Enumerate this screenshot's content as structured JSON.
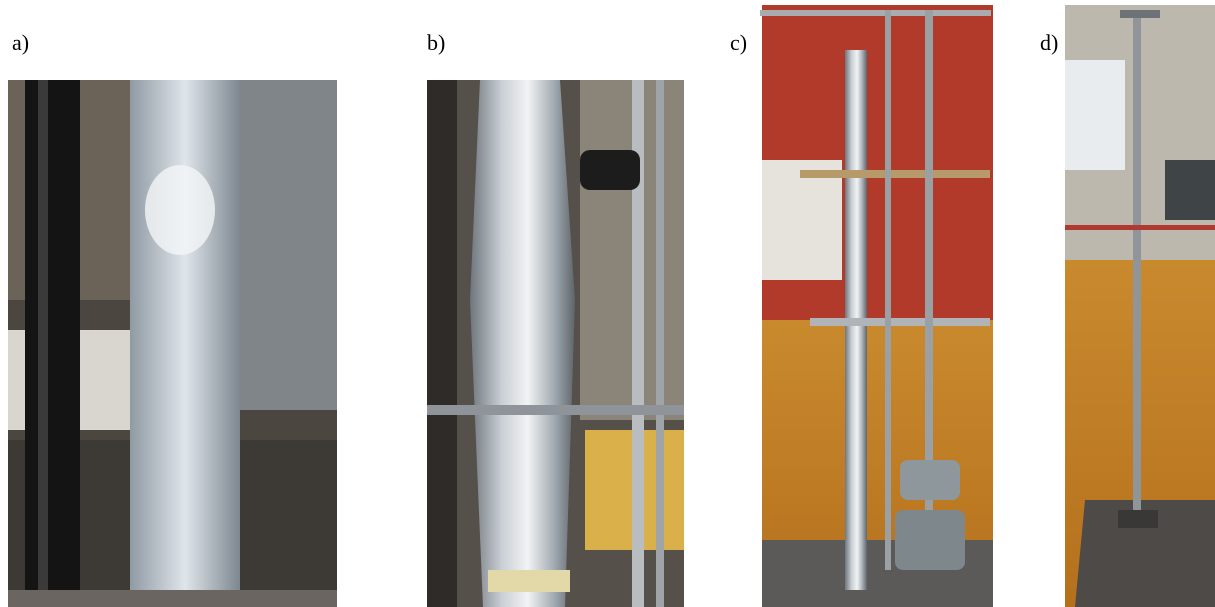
{
  "panels": [
    {
      "label": "a)"
    },
    {
      "label": "b)"
    },
    {
      "label": "c)"
    },
    {
      "label": "d)"
    }
  ]
}
